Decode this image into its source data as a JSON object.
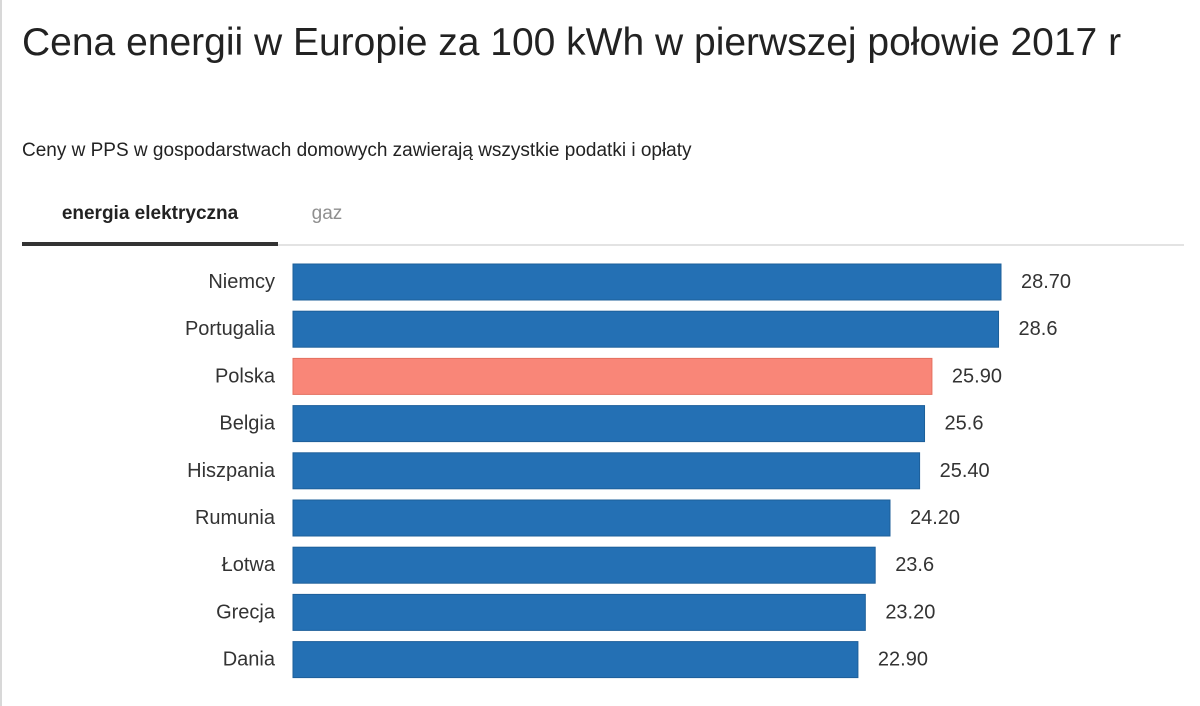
{
  "header": {
    "title": "Cena energii w Europie za 100 kWh w pierwszej połowie 2017 r",
    "subtitle": "Ceny w PPS w gospodarstwach domowych zawierają wszystkie podatki i opłaty"
  },
  "tabs": [
    {
      "label": "energia elektryczna",
      "active": true
    },
    {
      "label": "gaz",
      "active": false
    }
  ],
  "colors": {
    "bar": "#2470b4",
    "highlight": "#f98678",
    "bar_border": "#1d5f9a",
    "highlight_border": "#e4705f"
  },
  "chart_data": {
    "type": "bar",
    "orientation": "horizontal",
    "categories": [
      "Niemcy",
      "Portugalia",
      "Polska",
      "Belgia",
      "Hiszpania",
      "Rumunia",
      "Łotwa",
      "Grecja",
      "Dania"
    ],
    "values": [
      28.7,
      28.6,
      25.9,
      25.6,
      25.4,
      24.2,
      23.6,
      23.2,
      22.9
    ],
    "value_labels": [
      "28.70",
      "28.6",
      "25.90",
      "25.6",
      "25.40",
      "24.20",
      "23.6",
      "23.20",
      "22.90"
    ],
    "highlight_category": "Polska",
    "xlim": [
      0,
      28.7
    ],
    "grid": false,
    "title": "Cena energii w Europie za 100 kWh w pierwszej połowie 2017 r",
    "subtitle": "Ceny w PPS w gospodarstwach domowych zawierają wszystkie podatki i opłaty"
  }
}
